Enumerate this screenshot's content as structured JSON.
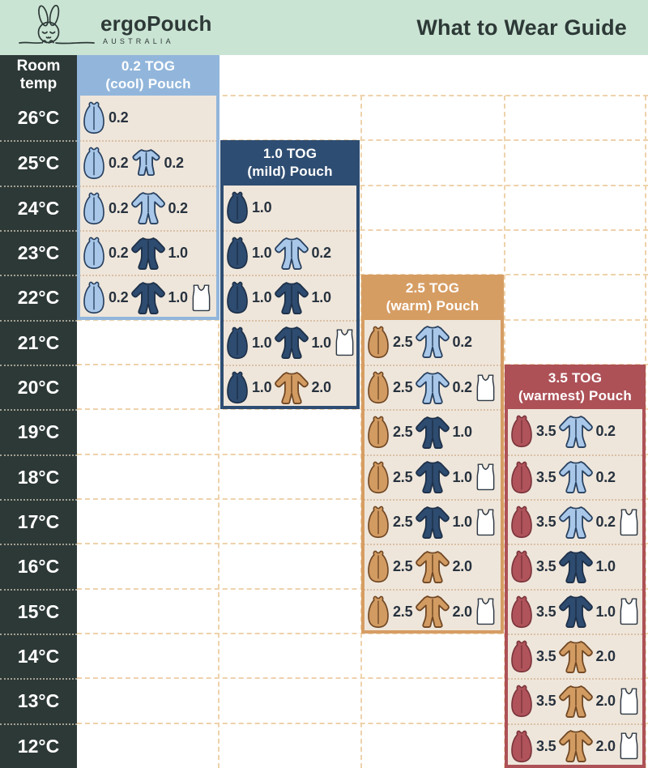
{
  "title": "What to Wear Guide",
  "brand": {
    "name": "ergoPouch",
    "country": "AUSTRALIA"
  },
  "temp_column": {
    "header_line1": "Room",
    "header_line2": "temp"
  },
  "temps": [
    "26°C",
    "25°C",
    "24°C",
    "23°C",
    "22°C",
    "21°C",
    "20°C",
    "19°C",
    "18°C",
    "17°C",
    "16°C",
    "15°C",
    "14°C",
    "13°C",
    "12°C"
  ],
  "colors": {
    "header_bg": "#cae4d4",
    "charcoal": "#2d3937",
    "panel_body": "#efe6db",
    "row_separator": "#d9c0a5",
    "background_dash": "#eed2ab",
    "number_text": "#27323e"
  },
  "tones": {
    "lightblue": {
      "fill": "#a9c7e8",
      "stroke": "#27405f"
    },
    "navy": {
      "fill": "#2e4b70",
      "stroke": "#1d3048"
    },
    "tan": {
      "fill": "#d29b62",
      "stroke": "#6f4724"
    },
    "red": {
      "fill": "#b0535a",
      "stroke": "#7b353c"
    },
    "white": {
      "fill": "#ffffff",
      "stroke": "#2f3a45"
    }
  },
  "panels": [
    {
      "key": "cool",
      "title_line1": "0.2 TOG",
      "title_line2": "(cool) Pouch",
      "accent": "#92b6db",
      "rows": [
        {
          "temp": "26°C",
          "items": [
            {
              "icon": "pouch",
              "tone": "lightblue",
              "label": "0.2"
            }
          ]
        },
        {
          "temp": "25°C",
          "items": [
            {
              "icon": "pouch",
              "tone": "lightblue",
              "label": "0.2"
            },
            {
              "icon": "romper",
              "tone": "lightblue",
              "label": "0.2"
            }
          ]
        },
        {
          "temp": "24°C",
          "items": [
            {
              "icon": "pouch",
              "tone": "lightblue",
              "label": "0.2"
            },
            {
              "icon": "suit",
              "tone": "lightblue",
              "label": "0.2"
            }
          ]
        },
        {
          "temp": "23°C",
          "items": [
            {
              "icon": "pouch",
              "tone": "lightblue",
              "label": "0.2"
            },
            {
              "icon": "suit",
              "tone": "navy",
              "label": "1.0"
            }
          ]
        },
        {
          "temp": "22°C",
          "items": [
            {
              "icon": "pouch",
              "tone": "lightblue",
              "label": "0.2"
            },
            {
              "icon": "suit",
              "tone": "navy",
              "label": "1.0"
            },
            {
              "icon": "singlet",
              "tone": "white",
              "label": ""
            }
          ]
        }
      ]
    },
    {
      "key": "mild",
      "title_line1": "1.0 TOG",
      "title_line2": "(mild) Pouch",
      "accent": "#2e4d72",
      "rows": [
        {
          "temp": "24°C",
          "items": [
            {
              "icon": "pouch",
              "tone": "navy",
              "label": "1.0"
            }
          ]
        },
        {
          "temp": "23°C",
          "items": [
            {
              "icon": "pouch",
              "tone": "navy",
              "label": "1.0"
            },
            {
              "icon": "suit",
              "tone": "lightblue",
              "label": "0.2"
            }
          ]
        },
        {
          "temp": "22°C",
          "items": [
            {
              "icon": "pouch",
              "tone": "navy",
              "label": "1.0"
            },
            {
              "icon": "suit",
              "tone": "navy",
              "label": "1.0"
            }
          ]
        },
        {
          "temp": "21°C",
          "items": [
            {
              "icon": "pouch",
              "tone": "navy",
              "label": "1.0"
            },
            {
              "icon": "suit",
              "tone": "navy",
              "label": "1.0"
            },
            {
              "icon": "singlet",
              "tone": "white",
              "label": ""
            }
          ]
        },
        {
          "temp": "20°C",
          "items": [
            {
              "icon": "pouch",
              "tone": "navy",
              "label": "1.0"
            },
            {
              "icon": "suit",
              "tone": "tan",
              "label": "2.0"
            }
          ]
        }
      ]
    },
    {
      "key": "warm",
      "title_line1": "2.5 TOG",
      "title_line2": "(warm) Pouch",
      "accent": "#d69d63",
      "rows": [
        {
          "temp": "21°C",
          "items": [
            {
              "icon": "pouch",
              "tone": "tan",
              "label": "2.5"
            },
            {
              "icon": "suit",
              "tone": "lightblue",
              "label": "0.2"
            }
          ]
        },
        {
          "temp": "20°C",
          "items": [
            {
              "icon": "pouch",
              "tone": "tan",
              "label": "2.5"
            },
            {
              "icon": "suit",
              "tone": "lightblue",
              "label": "0.2"
            },
            {
              "icon": "singlet",
              "tone": "white",
              "label": ""
            }
          ]
        },
        {
          "temp": "19°C",
          "items": [
            {
              "icon": "pouch",
              "tone": "tan",
              "label": "2.5"
            },
            {
              "icon": "suit",
              "tone": "navy",
              "label": "1.0"
            }
          ]
        },
        {
          "temp": "18°C",
          "items": [
            {
              "icon": "pouch",
              "tone": "tan",
              "label": "2.5"
            },
            {
              "icon": "suit",
              "tone": "navy",
              "label": "1.0"
            },
            {
              "icon": "singlet",
              "tone": "white",
              "label": ""
            }
          ]
        },
        {
          "temp": "17°C",
          "items": [
            {
              "icon": "pouch",
              "tone": "tan",
              "label": "2.5"
            },
            {
              "icon": "suit",
              "tone": "navy",
              "label": "1.0"
            },
            {
              "icon": "singlet",
              "tone": "white",
              "label": ""
            }
          ]
        },
        {
          "temp": "16°C",
          "items": [
            {
              "icon": "pouch",
              "tone": "tan",
              "label": "2.5"
            },
            {
              "icon": "suit",
              "tone": "tan",
              "label": "2.0"
            }
          ]
        },
        {
          "temp": "15°C",
          "items": [
            {
              "icon": "pouch",
              "tone": "tan",
              "label": "2.5"
            },
            {
              "icon": "suit",
              "tone": "tan",
              "label": "2.0"
            },
            {
              "icon": "singlet",
              "tone": "white",
              "label": ""
            }
          ]
        }
      ]
    },
    {
      "key": "warmest",
      "title_line1": "3.5 TOG",
      "title_line2": "(warmest) Pouch",
      "accent": "#ad5157",
      "rows": [
        {
          "temp": "19°C",
          "items": [
            {
              "icon": "pouch",
              "tone": "red",
              "label": "3.5"
            },
            {
              "icon": "suit",
              "tone": "lightblue",
              "label": "0.2"
            }
          ]
        },
        {
          "temp": "18°C",
          "items": [
            {
              "icon": "pouch",
              "tone": "red",
              "label": "3.5"
            },
            {
              "icon": "suit",
              "tone": "lightblue",
              "label": "0.2"
            }
          ]
        },
        {
          "temp": "17°C",
          "items": [
            {
              "icon": "pouch",
              "tone": "red",
              "label": "3.5"
            },
            {
              "icon": "suit",
              "tone": "lightblue",
              "label": "0.2"
            },
            {
              "icon": "singlet",
              "tone": "white",
              "label": ""
            }
          ]
        },
        {
          "temp": "16°C",
          "items": [
            {
              "icon": "pouch",
              "tone": "red",
              "label": "3.5"
            },
            {
              "icon": "suit",
              "tone": "navy",
              "label": "1.0"
            }
          ]
        },
        {
          "temp": "15°C",
          "items": [
            {
              "icon": "pouch",
              "tone": "red",
              "label": "3.5"
            },
            {
              "icon": "suit",
              "tone": "navy",
              "label": "1.0"
            },
            {
              "icon": "singlet",
              "tone": "white",
              "label": ""
            }
          ]
        },
        {
          "temp": "14°C",
          "items": [
            {
              "icon": "pouch",
              "tone": "red",
              "label": "3.5"
            },
            {
              "icon": "suit",
              "tone": "tan",
              "label": "2.0"
            }
          ]
        },
        {
          "temp": "13°C",
          "items": [
            {
              "icon": "pouch",
              "tone": "red",
              "label": "3.5"
            },
            {
              "icon": "suit",
              "tone": "tan",
              "label": "2.0"
            },
            {
              "icon": "singlet",
              "tone": "white",
              "label": ""
            }
          ]
        },
        {
          "temp": "12°C",
          "items": [
            {
              "icon": "pouch",
              "tone": "red",
              "label": "3.5"
            },
            {
              "icon": "suit",
              "tone": "tan",
              "label": "2.0"
            },
            {
              "icon": "singlet",
              "tone": "white",
              "label": ""
            }
          ]
        }
      ]
    }
  ],
  "chart_data": {
    "type": "table",
    "title": "What to Wear Guide",
    "row_header": "Room temp (°C)",
    "columns": [
      "0.2 TOG (cool) Pouch",
      "1.0 TOG (mild) Pouch",
      "2.5 TOG (warm) Pouch",
      "3.5 TOG (warmest) Pouch"
    ],
    "temps_c": [
      26,
      25,
      24,
      23,
      22,
      21,
      20,
      19,
      18,
      17,
      16,
      15,
      14,
      13,
      12
    ],
    "rows": [
      {
        "temp_c": 26,
        "cells": [
          "0.2 pouch",
          "",
          "",
          ""
        ]
      },
      {
        "temp_c": 25,
        "cells": [
          "0.2 pouch + 0.2 romper",
          "",
          "",
          ""
        ]
      },
      {
        "temp_c": 24,
        "cells": [
          "0.2 pouch + 0.2 suit",
          "1.0 pouch",
          "",
          ""
        ]
      },
      {
        "temp_c": 23,
        "cells": [
          "0.2 pouch + 1.0 suit",
          "1.0 pouch + 0.2 suit",
          "",
          ""
        ]
      },
      {
        "temp_c": 22,
        "cells": [
          "0.2 pouch + 1.0 suit + singlet",
          "1.0 pouch + 1.0 suit",
          "",
          ""
        ]
      },
      {
        "temp_c": 21,
        "cells": [
          "",
          "1.0 pouch + 1.0 suit + singlet",
          "2.5 pouch + 0.2 suit",
          ""
        ]
      },
      {
        "temp_c": 20,
        "cells": [
          "",
          "1.0 pouch + 2.0 suit",
          "2.5 pouch + 0.2 suit + singlet",
          ""
        ]
      },
      {
        "temp_c": 19,
        "cells": [
          "",
          "",
          "2.5 pouch + 1.0 suit",
          "3.5 pouch + 0.2 suit"
        ]
      },
      {
        "temp_c": 18,
        "cells": [
          "",
          "",
          "2.5 pouch + 1.0 suit + singlet",
          "3.5 pouch + 0.2 suit"
        ]
      },
      {
        "temp_c": 17,
        "cells": [
          "",
          "",
          "2.5 pouch + 1.0 suit + singlet",
          "3.5 pouch + 0.2 suit + singlet"
        ]
      },
      {
        "temp_c": 16,
        "cells": [
          "",
          "",
          "2.5 pouch + 2.0 suit",
          "3.5 pouch + 1.0 suit"
        ]
      },
      {
        "temp_c": 15,
        "cells": [
          "",
          "",
          "2.5 pouch + 2.0 suit + singlet",
          "3.5 pouch + 1.0 suit + singlet"
        ]
      },
      {
        "temp_c": 14,
        "cells": [
          "",
          "",
          "",
          "3.5 pouch + 2.0 suit"
        ]
      },
      {
        "temp_c": 13,
        "cells": [
          "",
          "",
          "",
          "3.5 pouch + 2.0 suit + singlet"
        ]
      },
      {
        "temp_c": 12,
        "cells": [
          "",
          "",
          "",
          "3.5 pouch + 2.0 suit + singlet"
        ]
      }
    ]
  }
}
